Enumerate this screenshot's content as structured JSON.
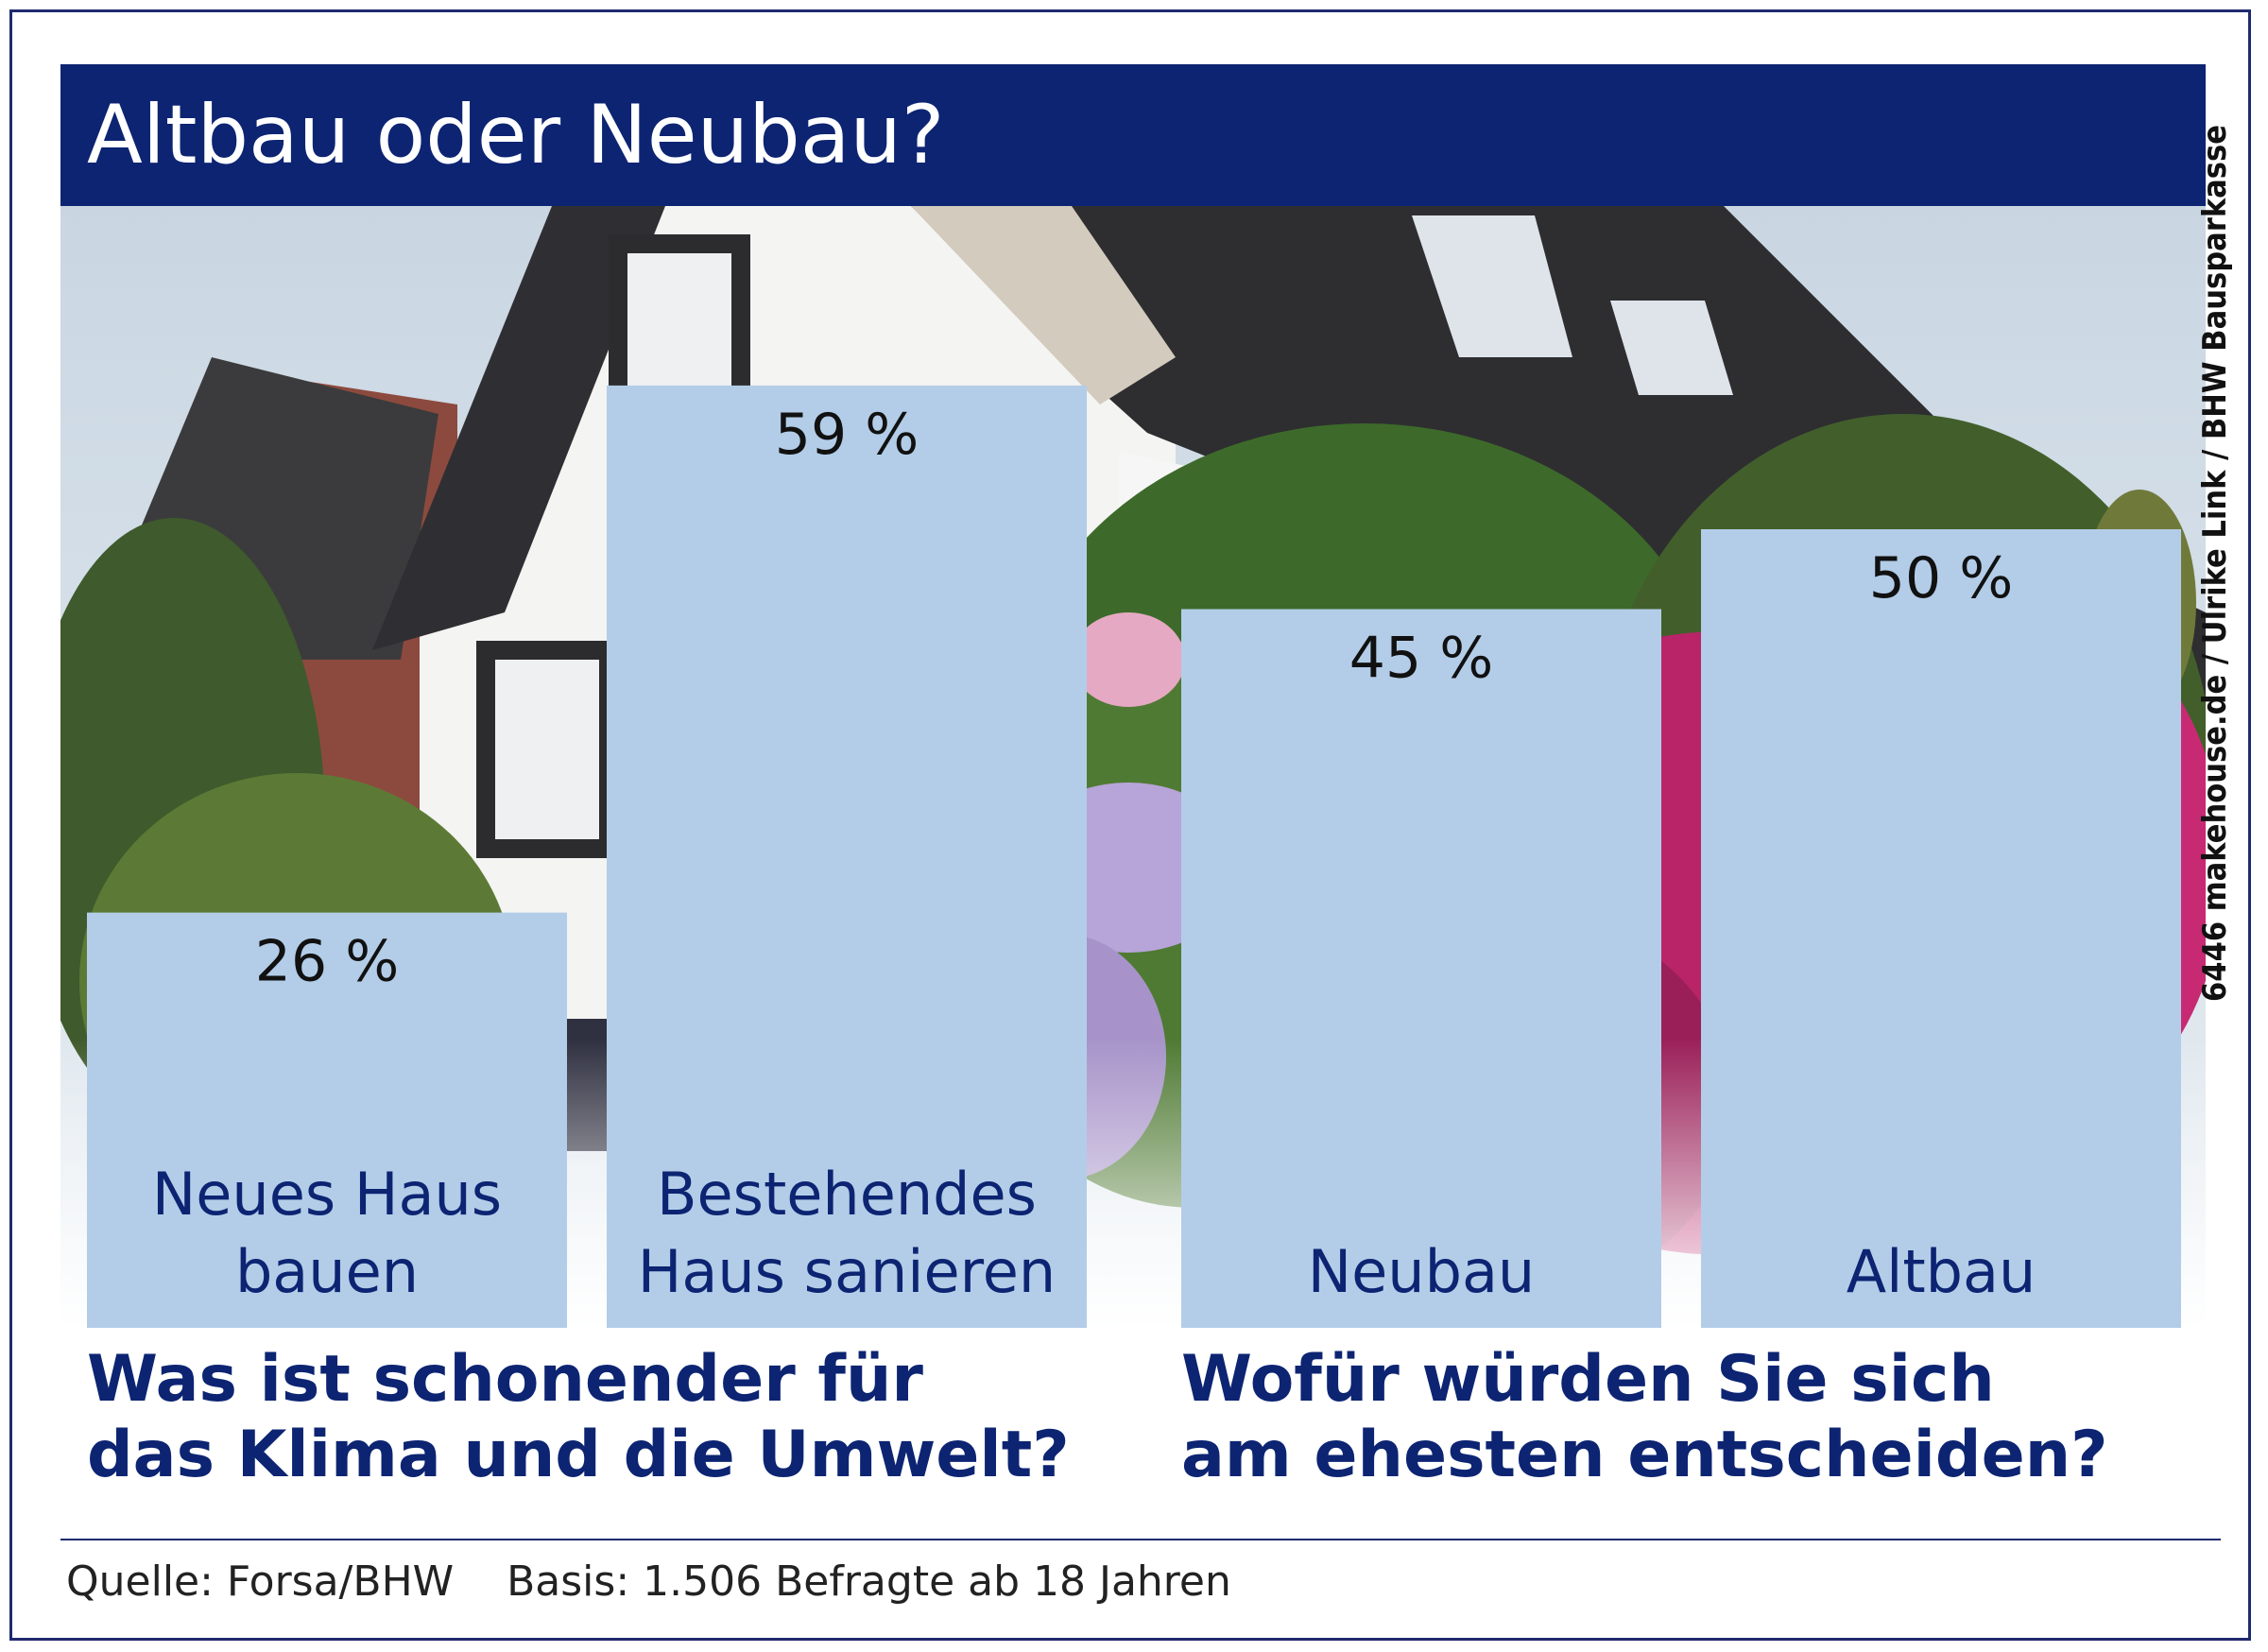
{
  "title": "Altbau oder Neubau?",
  "credit": "6446 makehouse.de / Ulrike Link / BHW Bausparkasse",
  "colors": {
    "brand_navy": "#0c2472",
    "bar_fill": "#b3cde8",
    "value_text": "#111111",
    "category_text": "#0c2472"
  },
  "chart_data": [
    {
      "type": "bar",
      "title": "Was ist schonender für das Klima und die Umwelt?",
      "title_lines": [
        "Was ist schonender für",
        "das Klima und die Umwelt?"
      ],
      "categories": [
        "Neues Haus bauen",
        "Bestehendes Haus sanieren"
      ],
      "category_lines": [
        [
          "Neues Haus",
          "bauen"
        ],
        [
          "Bestehendes",
          "Haus sanieren"
        ]
      ],
      "values": [
        26,
        59
      ],
      "value_labels": [
        "26 %",
        "59 %"
      ],
      "unit": "%"
    },
    {
      "type": "bar",
      "title": "Wofür würden Sie sich am ehesten entscheiden?",
      "title_lines": [
        "Wofür würden Sie sich",
        "am ehesten entscheiden?"
      ],
      "categories": [
        "Neubau",
        "Altbau"
      ],
      "category_lines": [
        [
          "Neubau"
        ],
        [
          "Altbau"
        ]
      ],
      "values": [
        45,
        50
      ],
      "value_labels": [
        "45 %",
        "50 %"
      ],
      "unit": "%"
    }
  ],
  "source": "Quelle: Forsa/BHW    Basis: 1.506 Befragte ab 18 Jahren"
}
